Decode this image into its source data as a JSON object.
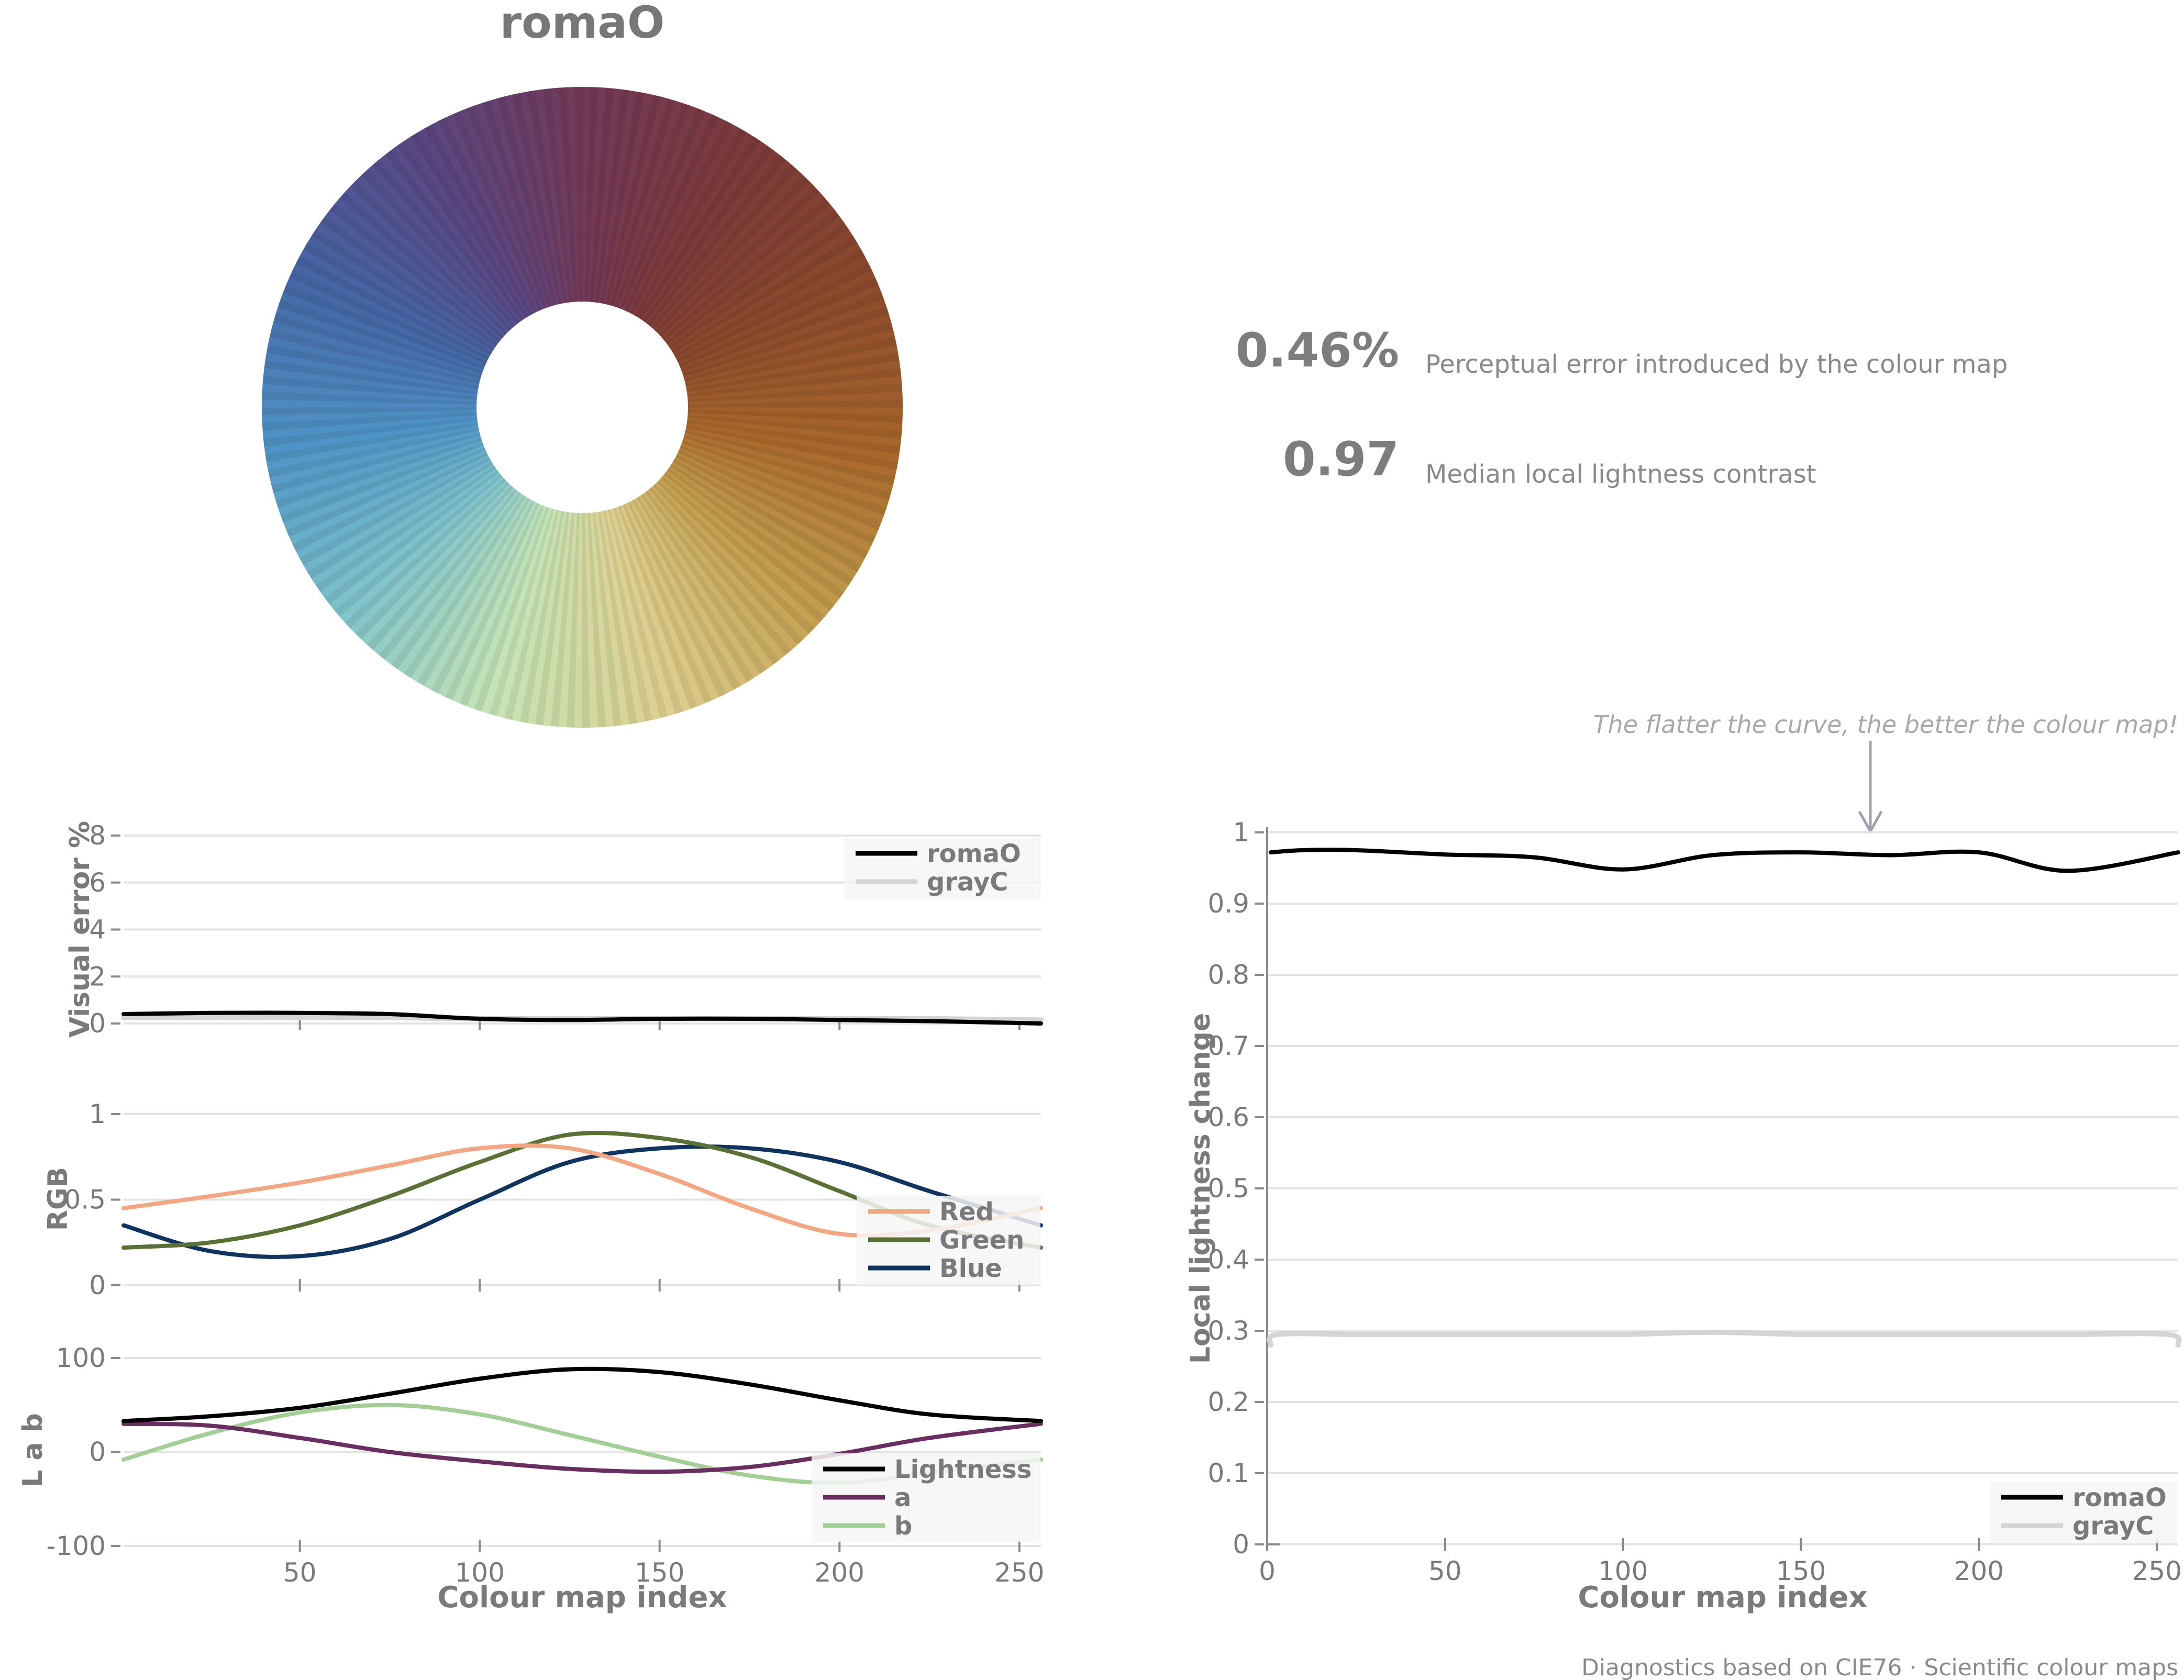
{
  "title": "romaO",
  "stats": [
    {
      "value": "0.46%",
      "label": "Perceptual error introduced by the colour map"
    },
    {
      "value": "0.97",
      "label": "Median local lightness contrast"
    }
  ],
  "annotation": "The flatter the curve, the better the colour map!",
  "footer": "Diagnostics based on CIE76  ·  Scientific colour maps",
  "colors": {
    "romaO": "#000000",
    "grayC": "#d4d4d4",
    "red": "#f4a582",
    "green": "#5b7035",
    "blue": "#0f3460",
    "lightness": "#000000",
    "a": "#6a2d5f",
    "b": "#a3cf97"
  },
  "wheel_stops": [
    "#733957",
    "#7c3a3a",
    "#8b4a2c",
    "#a8672a",
    "#c4a050",
    "#dfd08f",
    "#c5e4b6",
    "#7fc3cc",
    "#4f94c6",
    "#4566a4",
    "#5a4784",
    "#733957"
  ],
  "chart_data": [
    {
      "type": "line",
      "id": "visual-error",
      "ylabel": "Visual error %",
      "xlim": [
        1,
        256
      ],
      "ylim": [
        0,
        8
      ],
      "yticks": [
        "0",
        "2",
        "4",
        "6",
        "8"
      ],
      "series": [
        {
          "name": "romaO",
          "x": [
            1,
            25,
            50,
            75,
            100,
            125,
            150,
            175,
            200,
            225,
            256
          ],
          "y": [
            0.4,
            0.45,
            0.45,
            0.4,
            0.2,
            0.15,
            0.2,
            0.2,
            0.15,
            0.1,
            0.0
          ]
        },
        {
          "name": "grayC",
          "x": [
            1,
            25,
            50,
            75,
            100,
            125,
            150,
            175,
            200,
            225,
            256
          ],
          "y": [
            0.25,
            0.25,
            0.25,
            0.25,
            0.2,
            0.2,
            0.2,
            0.2,
            0.2,
            0.2,
            0.15
          ]
        }
      ]
    },
    {
      "type": "line",
      "id": "rgb",
      "ylabel": "RGB",
      "xlim": [
        1,
        256
      ],
      "ylim": [
        0,
        1
      ],
      "yticks": [
        "0",
        "0.5",
        "1"
      ],
      "series": [
        {
          "name": "Red",
          "x": [
            1,
            25,
            50,
            75,
            100,
            125,
            150,
            175,
            200,
            225,
            256
          ],
          "y": [
            0.45,
            0.52,
            0.6,
            0.7,
            0.8,
            0.8,
            0.65,
            0.45,
            0.3,
            0.32,
            0.45
          ]
        },
        {
          "name": "Green",
          "x": [
            1,
            25,
            50,
            75,
            100,
            125,
            150,
            175,
            200,
            225,
            256
          ],
          "y": [
            0.22,
            0.25,
            0.35,
            0.52,
            0.72,
            0.88,
            0.86,
            0.75,
            0.55,
            0.35,
            0.22
          ]
        },
        {
          "name": "Blue",
          "x": [
            1,
            25,
            50,
            75,
            100,
            125,
            150,
            175,
            200,
            225,
            256
          ],
          "y": [
            0.35,
            0.2,
            0.17,
            0.27,
            0.5,
            0.72,
            0.8,
            0.8,
            0.72,
            0.55,
            0.35
          ]
        }
      ]
    },
    {
      "type": "line",
      "id": "lab",
      "ylabel": "L a b",
      "xlabel": "Colour map index",
      "xlim": [
        1,
        256
      ],
      "ylim": [
        -100,
        100
      ],
      "yticks": [
        "-100",
        "0",
        "100"
      ],
      "xticks": [
        "50",
        "100",
        "150",
        "200",
        "250"
      ],
      "series": [
        {
          "name": "Lightness",
          "x": [
            1,
            25,
            50,
            75,
            100,
            125,
            150,
            175,
            200,
            225,
            256
          ],
          "y": [
            33,
            38,
            47,
            62,
            78,
            88,
            85,
            72,
            55,
            40,
            33
          ]
        },
        {
          "name": "a",
          "x": [
            1,
            25,
            50,
            75,
            100,
            125,
            150,
            175,
            200,
            225,
            256
          ],
          "y": [
            30,
            28,
            15,
            0,
            -10,
            -18,
            -21,
            -16,
            -2,
            15,
            30
          ]
        },
        {
          "name": "b",
          "x": [
            1,
            25,
            50,
            75,
            100,
            125,
            150,
            175,
            200,
            225,
            256
          ],
          "y": [
            -8,
            20,
            42,
            50,
            40,
            18,
            -5,
            -25,
            -33,
            -22,
            -8
          ]
        }
      ]
    },
    {
      "type": "line",
      "id": "local-lightness",
      "ylabel": "Local lightness change",
      "xlabel": "Colour map index",
      "xlim": [
        0,
        256
      ],
      "ylim": [
        0,
        1
      ],
      "yticks": [
        "0",
        "0.1",
        "0.2",
        "0.3",
        "0.4",
        "0.5",
        "0.6",
        "0.7",
        "0.8",
        "0.9",
        "1"
      ],
      "xticks": [
        "0",
        "50",
        "100",
        "150",
        "200",
        "250"
      ],
      "series": [
        {
          "name": "romaO",
          "x": [
            1,
            10,
            25,
            50,
            75,
            100,
            125,
            150,
            175,
            200,
            225,
            256
          ],
          "y": [
            0.972,
            0.975,
            0.975,
            0.969,
            0.965,
            0.948,
            0.968,
            0.972,
            0.968,
            0.972,
            0.946,
            0.972
          ]
        },
        {
          "name": "grayC",
          "x": [
            1,
            3,
            25,
            50,
            75,
            100,
            125,
            150,
            175,
            200,
            225,
            253,
            256
          ],
          "y": [
            0.28,
            0.295,
            0.295,
            0.295,
            0.295,
            0.295,
            0.298,
            0.295,
            0.295,
            0.295,
            0.295,
            0.295,
            0.28
          ]
        }
      ]
    }
  ]
}
